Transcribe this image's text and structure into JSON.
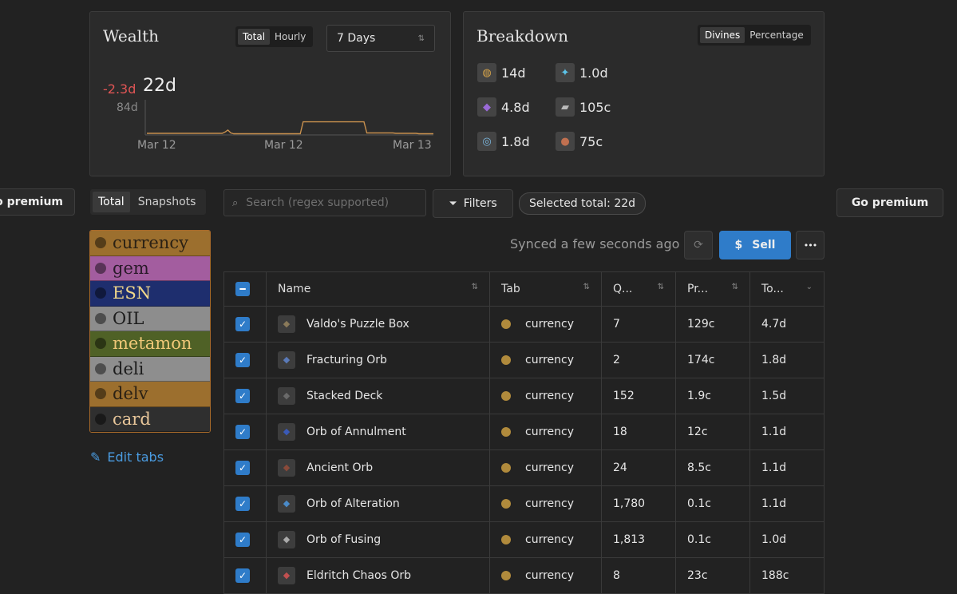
{
  "wealth": {
    "title": "Wealth",
    "toggle": {
      "total": "Total",
      "hourly": "Hourly"
    },
    "period": "7 Days",
    "change": "-2.3d",
    "value": "22d",
    "y_max_label": "84d",
    "x_labels": [
      "Mar 12",
      "Mar 12",
      "Mar 13"
    ]
  },
  "chart_data": {
    "type": "line",
    "title": "Wealth",
    "series": [
      {
        "name": "Wealth",
        "values": [
          2,
          2,
          2,
          2,
          2,
          2,
          2,
          2,
          2,
          2,
          2,
          2,
          2,
          2,
          2,
          2,
          2,
          2,
          2,
          2,
          2,
          2,
          2,
          2,
          2,
          2,
          2,
          5,
          10,
          3,
          1,
          1,
          1,
          1,
          1,
          1,
          1,
          1,
          1,
          1,
          1,
          1,
          1,
          1,
          1,
          1,
          1,
          1,
          1,
          1,
          1,
          1,
          1,
          1,
          30,
          30,
          30,
          30,
          30,
          30,
          30,
          30,
          30,
          30,
          30,
          30,
          30,
          30,
          30,
          30,
          30,
          30,
          30,
          30,
          30,
          30,
          3,
          3,
          3,
          3,
          3,
          3,
          3,
          3,
          3,
          3,
          2,
          2,
          2,
          2,
          2,
          2,
          2,
          2,
          1,
          1,
          1,
          1,
          1,
          1
        ]
      }
    ],
    "ylim": [
      0,
      84
    ],
    "ytick_label": "84d",
    "xticks": [
      "Mar 12",
      "Mar 12",
      "Mar 13"
    ],
    "color": "#c8904e"
  },
  "breakdown": {
    "title": "Breakdown",
    "toggle": {
      "divines": "Divines",
      "percentage": "Percentage"
    },
    "items": [
      {
        "icon": "currency-icon",
        "value": "14d"
      },
      {
        "icon": "essence-icon",
        "value": "1.0d"
      },
      {
        "icon": "fragment-icon",
        "value": "4.8d"
      },
      {
        "icon": "card-icon",
        "value": "105c"
      },
      {
        "icon": "orb-icon",
        "value": "1.8d"
      },
      {
        "icon": "ancient-orb-icon",
        "value": "75c"
      }
    ]
  },
  "toolbar": {
    "go_premium_left": "o premium",
    "view_total": "Total",
    "view_snapshots": "Snapshots",
    "search_placeholder": "Search (regex supported)",
    "filters": "Filters",
    "selected_total": "Selected total: 22d",
    "go_premium_right": "Go premium",
    "synced": "Synced a few seconds ago",
    "sell": "Sell",
    "sell_symbol": "$",
    "more": "•••"
  },
  "stash_tabs": [
    {
      "name": "currency",
      "bg": "#9c6f2e",
      "fg": "#2b2114"
    },
    {
      "name": "gem",
      "bg": "#a35d9f",
      "fg": "#2a1a2a"
    },
    {
      "name": "ESN",
      "bg": "#1e2e6e",
      "fg": "#f0d78a"
    },
    {
      "name": "OIL",
      "bg": "#8d8d8d",
      "fg": "#1c1c1c"
    },
    {
      "name": "metamon",
      "bg": "#4f6126",
      "fg": "#f0c878"
    },
    {
      "name": "deli",
      "bg": "#8e8e8e",
      "fg": "#1c1c1c"
    },
    {
      "name": "delv",
      "bg": "#9c6f2e",
      "fg": "#2b2114"
    },
    {
      "name": "card",
      "bg": "#2f2f2f",
      "fg": "#e8c69a"
    }
  ],
  "edit_tabs": "Edit tabs",
  "table": {
    "headers": [
      "Name",
      "Tab",
      "Q...",
      "Pr...",
      "To..."
    ],
    "rows": [
      {
        "name": "Valdo's Puzzle Box",
        "tab": "currency",
        "qty": "7",
        "price": "129c",
        "total": "4.7d"
      },
      {
        "name": "Fracturing Orb",
        "tab": "currency",
        "qty": "2",
        "price": "174c",
        "total": "1.8d"
      },
      {
        "name": "Stacked Deck",
        "tab": "currency",
        "qty": "152",
        "price": "1.9c",
        "total": "1.5d"
      },
      {
        "name": "Orb of Annulment",
        "tab": "currency",
        "qty": "18",
        "price": "12c",
        "total": "1.1d"
      },
      {
        "name": "Ancient Orb",
        "tab": "currency",
        "qty": "24",
        "price": "8.5c",
        "total": "1.1d"
      },
      {
        "name": "Orb of Alteration",
        "tab": "currency",
        "qty": "1,780",
        "price": "0.1c",
        "total": "1.1d"
      },
      {
        "name": "Orb of Fusing",
        "tab": "currency",
        "qty": "1,813",
        "price": "0.1c",
        "total": "1.0d"
      },
      {
        "name": "Eldritch Chaos Orb",
        "tab": "currency",
        "qty": "8",
        "price": "23c",
        "total": "188c"
      }
    ]
  }
}
